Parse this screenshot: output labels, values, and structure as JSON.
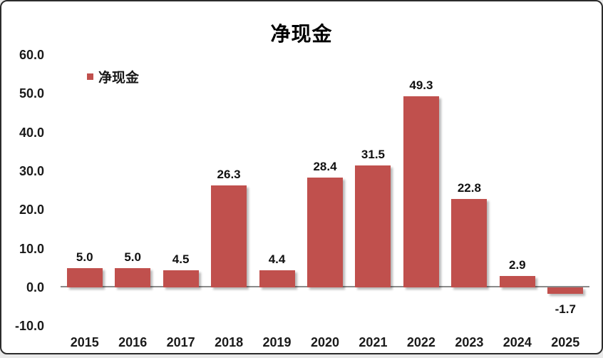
{
  "chart_data": {
    "type": "bar",
    "title": "净现金",
    "legend_label": "净现金",
    "legend_position": "top-left-inside",
    "categories": [
      "2015",
      "2016",
      "2017",
      "2018",
      "2019",
      "2020",
      "2021",
      "2022",
      "2023",
      "2024",
      "2025"
    ],
    "values": [
      5.0,
      5.0,
      4.5,
      26.3,
      4.4,
      28.4,
      31.5,
      49.3,
      22.8,
      2.9,
      -1.7
    ],
    "value_labels": [
      "5.0",
      "5.0",
      "4.5",
      "26.3",
      "4.4",
      "28.4",
      "31.5",
      "49.3",
      "22.8",
      "2.9",
      "-1.7"
    ],
    "yticks": [
      {
        "label": "60.0",
        "value": 60
      },
      {
        "label": "50.0",
        "value": 50
      },
      {
        "label": "40.0",
        "value": 40
      },
      {
        "label": "30.0",
        "value": 30
      },
      {
        "label": "20.0",
        "value": 20
      },
      {
        "label": "10.0",
        "value": 10
      },
      {
        "label": "0.0",
        "value": 0
      },
      {
        "label": "-10.0",
        "value": -10
      }
    ],
    "ylim": [
      -10,
      60
    ],
    "xlabel": "",
    "ylabel": "",
    "grid": false,
    "colors": {
      "bar": "#C0504D",
      "axis_line": "#8a8a8a",
      "text": "#1a1a1a",
      "card_border": "#2b2b2b",
      "background": "#ffffff"
    }
  }
}
